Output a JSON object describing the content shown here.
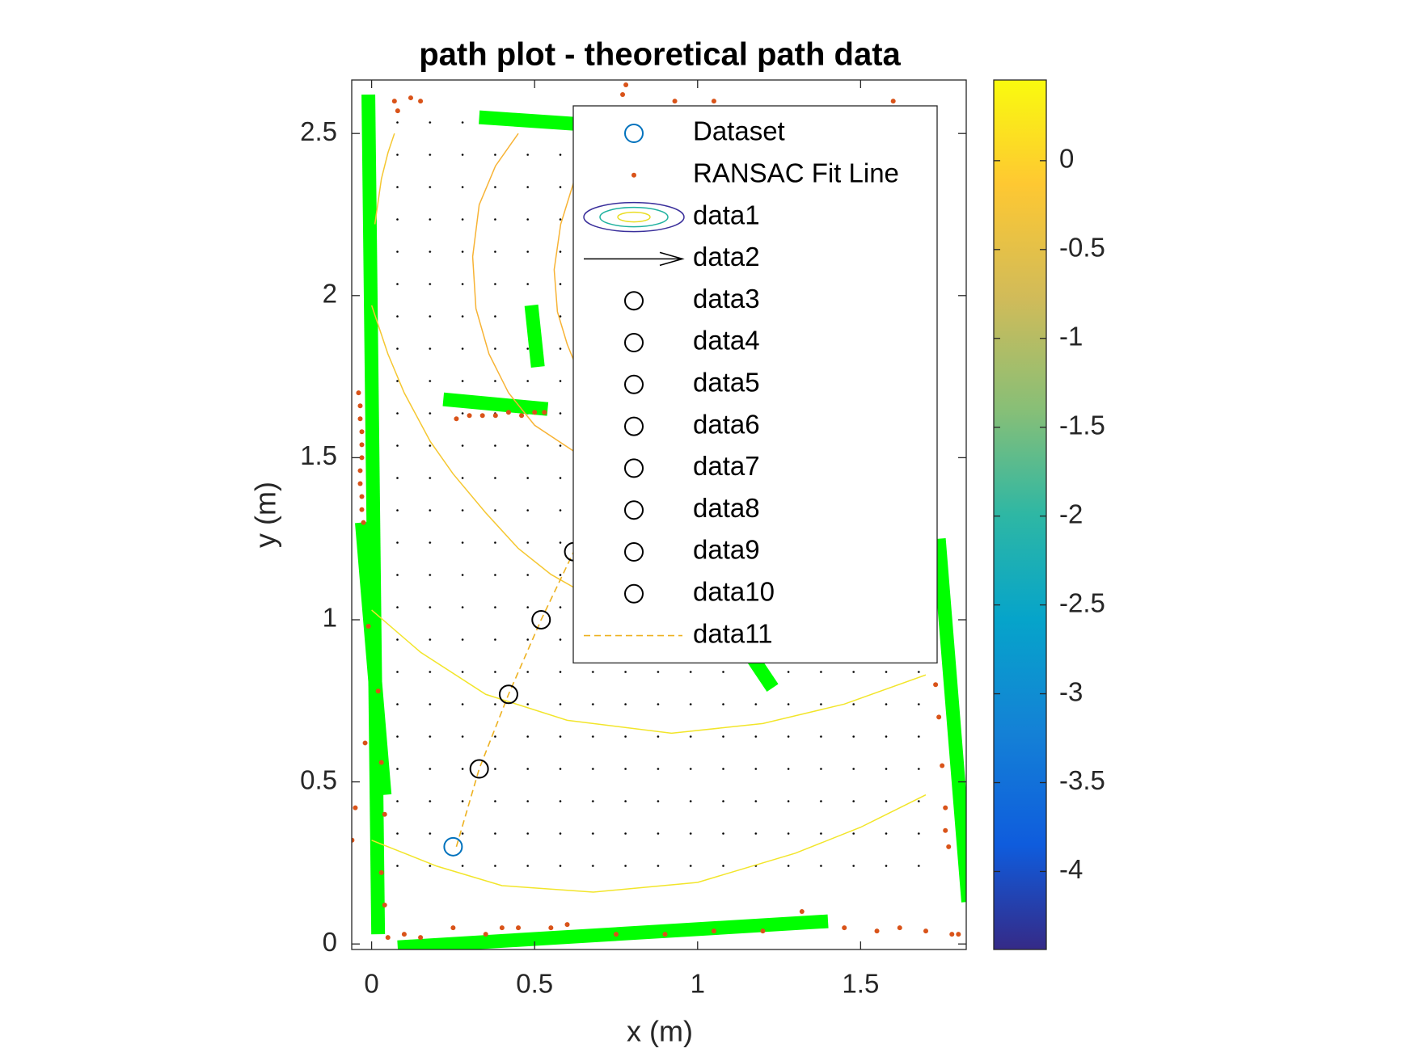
{
  "chart_data": {
    "type": "scatter",
    "title": "path plot - theoretical path data",
    "x_label": "x (m)",
    "y_label": "y (m)",
    "xlim": [
      -0.061,
      1.824
    ],
    "ylim": [
      -0.017,
      2.665
    ],
    "xticks": [
      0,
      0.5,
      1,
      1.5
    ],
    "yticks": [
      0,
      0.5,
      1,
      1.5,
      2,
      2.5
    ],
    "colorbar": {
      "clim": [
        -4.439,
        0.454
      ],
      "ticks": [
        0,
        -0.5,
        -1,
        -1.5,
        -2,
        -2.5,
        -3,
        -3.5,
        -4
      ]
    },
    "legend": "upper right",
    "segments": {
      "color": "#00ff00",
      "lines": [
        {
          "x": [
            -0.01,
            0.02
          ],
          "y": [
            2.62,
            0.03
          ]
        },
        {
          "x": [
            -0.03,
            0.04
          ],
          "y": [
            1.3,
            0.46
          ]
        },
        {
          "x": [
            0.33,
            0.62
          ],
          "y": [
            2.55,
            2.53
          ]
        },
        {
          "x": [
            0.49,
            0.51
          ],
          "y": [
            1.97,
            1.78
          ]
        },
        {
          "x": [
            0.22,
            0.54
          ],
          "y": [
            1.68,
            1.65
          ]
        },
        {
          "x": [
            0.08,
            1.4
          ],
          "y": [
            -0.01,
            0.07
          ]
        },
        {
          "x": [
            1.74,
            1.83
          ],
          "y": [
            1.25,
            0.13
          ]
        },
        {
          "x": [
            1.17,
            1.23
          ],
          "y": [
            0.88,
            0.79
          ]
        }
      ]
    },
    "series": [
      {
        "name": "Dataset",
        "type": "scatter",
        "color": "#0072bd",
        "x": [
          0.25
        ],
        "y": [
          0.3
        ]
      },
      {
        "name": "RANSAC Fit Line",
        "type": "dots",
        "color": "#d95319",
        "x": [
          -0.04,
          -0.035,
          -0.035,
          -0.03,
          -0.03,
          -0.03,
          -0.035,
          -0.035,
          -0.03,
          -0.03,
          -0.025,
          -0.05,
          -0.06,
          -0.01,
          -0.02,
          0.02,
          0.03,
          0.03,
          0.04,
          0.04,
          0.07,
          0.12,
          0.15,
          0.08,
          0.78,
          0.77,
          0.93,
          1.05,
          1.6,
          0.26,
          0.3,
          0.34,
          0.38,
          0.42,
          0.46,
          0.5,
          0.53,
          0.05,
          0.1,
          0.15,
          0.25,
          0.35,
          0.4,
          0.45,
          0.55,
          0.6,
          0.75,
          0.9,
          1.05,
          1.2,
          1.32,
          1.45,
          1.55,
          1.62,
          1.7,
          1.78,
          1.8,
          1.73,
          1.74,
          1.75,
          1.76,
          1.76,
          1.77
        ],
        "y": [
          1.7,
          1.66,
          1.62,
          1.58,
          1.54,
          1.5,
          1.46,
          1.42,
          1.38,
          1.34,
          1.3,
          0.42,
          0.32,
          0.98,
          0.62,
          0.78,
          0.56,
          0.22,
          0.4,
          0.12,
          2.6,
          2.61,
          2.6,
          2.57,
          2.65,
          2.62,
          2.6,
          2.6,
          2.6,
          1.62,
          1.63,
          1.63,
          1.63,
          1.64,
          1.63,
          1.64,
          1.64,
          0.02,
          0.03,
          0.02,
          0.05,
          0.03,
          0.05,
          0.05,
          0.05,
          0.06,
          0.03,
          0.03,
          0.04,
          0.04,
          0.1,
          0.05,
          0.04,
          0.05,
          0.04,
          0.03,
          0.03,
          0.8,
          0.7,
          0.55,
          0.42,
          0.35,
          0.3
        ]
      },
      {
        "name": "data1",
        "type": "contour",
        "lines": [
          {
            "color": "#f2e52a",
            "x": [
              0,
              0.2,
              0.4,
              0.68,
              1.0,
              1.3,
              1.5,
              1.7
            ],
            "y": [
              0.32,
              0.24,
              0.18,
              0.16,
              0.19,
              0.28,
              0.36,
              0.46
            ]
          },
          {
            "color": "#f2e52a",
            "x": [
              0,
              0.15,
              0.35,
              0.6,
              0.92,
              1.2,
              1.45,
              1.7
            ],
            "y": [
              1.03,
              0.9,
              0.77,
              0.69,
              0.65,
              0.68,
              0.74,
              0.83
            ]
          },
          {
            "color": "#f5c731",
            "x": [
              0,
              0.05,
              0.1,
              0.18,
              0.25,
              0.35,
              0.45,
              0.55,
              0.62
            ],
            "y": [
              1.97,
              1.82,
              1.7,
              1.55,
              1.45,
              1.33,
              1.22,
              1.14,
              1.1
            ]
          },
          {
            "color": "#f7b335",
            "x": [
              0.45,
              0.38,
              0.33,
              0.31,
              0.32,
              0.36,
              0.42,
              0.5,
              0.62
            ],
            "y": [
              2.5,
              2.4,
              2.28,
              2.12,
              1.96,
              1.82,
              1.7,
              1.6,
              1.52
            ]
          },
          {
            "color": "#f7b335",
            "x": [
              0.62,
              0.58,
              0.56,
              0.57,
              0.6,
              0.62
            ],
            "y": [
              2.35,
              2.22,
              2.08,
              1.95,
              1.85,
              1.8
            ]
          },
          {
            "color": "#f5c731",
            "x": [
              0.01,
              0.03,
              0.05,
              0.07
            ],
            "y": [
              2.22,
              2.36,
              2.44,
              2.5
            ]
          }
        ]
      },
      {
        "name": "data2",
        "type": "quiver",
        "color": "#000000"
      },
      {
        "name": "data3",
        "type": "scatter",
        "color": "#000000",
        "x": [
          0.33
        ],
        "y": [
          0.54
        ]
      },
      {
        "name": "data4",
        "type": "scatter",
        "color": "#000000",
        "x": [
          0.42
        ],
        "y": [
          0.77
        ]
      },
      {
        "name": "data5",
        "type": "scatter",
        "color": "#000000",
        "x": [
          0.52
        ],
        "y": [
          1.0
        ]
      },
      {
        "name": "data6",
        "type": "scatter",
        "color": "#000000",
        "x": [
          0.62
        ],
        "y": [
          1.21
        ]
      },
      {
        "name": "data7",
        "type": "scatter",
        "color": "#000000",
        "x": [
          0.72
        ],
        "y": [
          1.42
        ]
      },
      {
        "name": "data8",
        "type": "scatter",
        "color": "#000000",
        "x": [
          0.82
        ],
        "y": [
          1.63
        ]
      },
      {
        "name": "data9",
        "type": "scatter",
        "color": "#000000",
        "x": [
          0.92
        ],
        "y": [
          1.84
        ]
      },
      {
        "name": "data10",
        "type": "scatter",
        "color": "#000000",
        "x": [
          1.02
        ],
        "y": [
          2.05
        ]
      },
      {
        "name": "data11",
        "type": "line",
        "style": "dashed",
        "color": "#edb120",
        "x": [
          0.26,
          0.33,
          0.42,
          0.52,
          0.62,
          0.72
        ],
        "y": [
          0.3,
          0.54,
          0.77,
          1.0,
          1.21,
          1.42
        ]
      }
    ]
  }
}
